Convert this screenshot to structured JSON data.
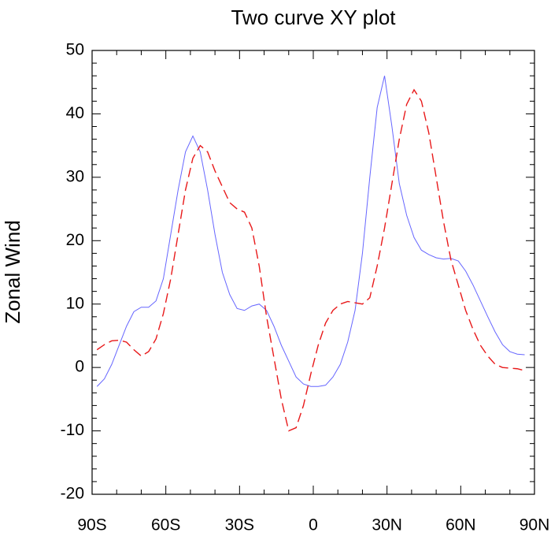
{
  "chart_data": {
    "type": "line",
    "title": "Two curve XY plot",
    "ylabel": "Zonal Wind",
    "x": [
      -88,
      -85,
      -82,
      -79,
      -76,
      -73,
      -70,
      -67,
      -64,
      -61,
      -58,
      -55,
      -52,
      -49,
      -46,
      -43,
      -40,
      -37,
      -34,
      -31,
      -28,
      -25,
      -22,
      -19,
      -16,
      -13,
      -10,
      -7,
      -4,
      -1,
      2,
      5,
      8,
      11,
      14,
      17,
      20,
      23,
      26,
      29,
      32,
      35,
      38,
      41,
      44,
      47,
      50,
      53,
      56,
      59,
      62,
      65,
      68,
      71,
      74,
      77,
      80,
      83,
      86
    ],
    "series": [
      {
        "color": "#6666ff",
        "dash": false,
        "values": [
          -3,
          -1.8,
          0.5,
          3.5,
          6.5,
          8.8,
          9.5,
          9.5,
          10.5,
          14,
          21,
          28,
          34,
          36.5,
          34,
          28,
          21,
          15,
          11.5,
          9.3,
          9,
          9.7,
          10,
          9,
          6.5,
          3.5,
          1,
          -1.5,
          -2.6,
          -3,
          -3,
          -2.8,
          -1.5,
          0.5,
          4,
          9,
          18,
          30,
          41,
          46,
          38,
          29,
          24,
          20.5,
          18.5,
          17.8,
          17.3,
          17.1,
          17.2,
          16.8,
          15.2,
          13,
          10.5,
          8,
          5.6,
          3.6,
          2.5,
          2.1,
          2.0
        ]
      },
      {
        "color": "#e8191a",
        "dash": true,
        "values": [
          2.8,
          3.6,
          4.2,
          4.3,
          4.0,
          2.8,
          1.8,
          2.5,
          4.5,
          8.5,
          14,
          21,
          28,
          33,
          35,
          34,
          31,
          28.5,
          26,
          25,
          24.5,
          22,
          16,
          8,
          1.5,
          -5,
          -10,
          -9.5,
          -6,
          -1,
          3.5,
          7,
          9,
          10,
          10.4,
          10.2,
          10,
          11,
          16,
          22,
          29,
          36,
          41.5,
          43.8,
          42,
          37,
          30,
          23,
          17,
          13,
          9,
          6,
          3.5,
          1.8,
          0.5,
          0,
          -0.1,
          -0.2,
          -0.5
        ]
      }
    ],
    "xlim": [
      -90,
      90
    ],
    "xticks": [
      {
        "value": -90,
        "label": "90S"
      },
      {
        "value": -60,
        "label": "60S"
      },
      {
        "value": -30,
        "label": "30S"
      },
      0,
      {
        "value": 30,
        "label": "30N"
      },
      {
        "value": 60,
        "label": "60N"
      },
      {
        "value": 90,
        "label": "90N"
      }
    ],
    "xminorticks": [
      -80,
      -70,
      -50,
      -40,
      -20,
      -10,
      10,
      20,
      40,
      50,
      70,
      80
    ],
    "ylim": [
      -20,
      50
    ],
    "yticks": [
      -20,
      -10,
      0,
      10,
      20,
      30,
      40,
      50
    ],
    "yminorticks": [
      -18,
      -16,
      -14,
      -12,
      -8,
      -6,
      -4,
      -2,
      2,
      4,
      6,
      8,
      12,
      14,
      16,
      18,
      22,
      24,
      26,
      28,
      32,
      34,
      36,
      38,
      42,
      44,
      46,
      48
    ],
    "grid": false
  }
}
